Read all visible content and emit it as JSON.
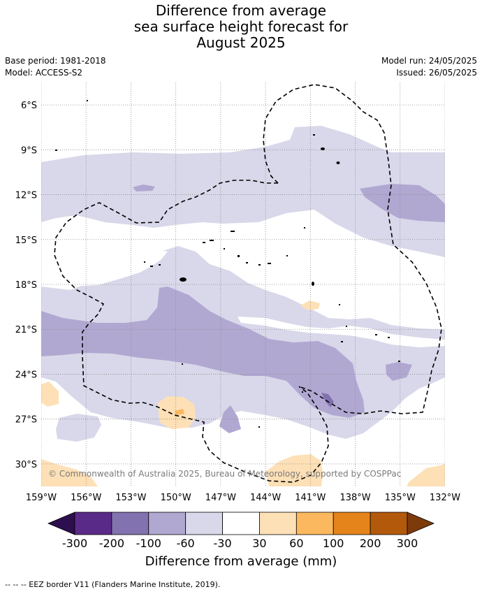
{
  "title": [
    "Difference from average",
    "sea surface height forecast for",
    "August 2025"
  ],
  "meta_left": {
    "base_period": "Base period: 1981-2018",
    "model": "Model: ACCESS-S2"
  },
  "meta_right": {
    "model_run": "Model run: 24/05/2025",
    "issued": "Issued: 26/05/2025"
  },
  "copyright": "© Commonwealth of Australia 2025, Bureau of Meteorology, supported by COSPPac",
  "map": {
    "lon_ticks": [
      -159,
      -156,
      -153,
      -150,
      -147,
      -144,
      -141,
      -138,
      -135,
      -132
    ],
    "lon_labels": [
      "159°W",
      "156°W",
      "153°W",
      "150°W",
      "147°W",
      "144°W",
      "141°W",
      "138°W",
      "135°W",
      "132°W"
    ],
    "lat_ticks": [
      -6,
      -9,
      -12,
      -15,
      -18,
      -21,
      -24,
      -27,
      -30
    ],
    "lat_labels": [
      "6°S",
      "9°S",
      "12°S",
      "15°S",
      "18°S",
      "21°S",
      "24°S",
      "27°S",
      "30°S"
    ],
    "lon_range": [
      -159,
      -132
    ],
    "lat_range": [
      -31.5,
      -4.5
    ],
    "gridlines": true
  },
  "colorbar": {
    "tick_labels": [
      "-300",
      "-200",
      "-100",
      "-60",
      "-30",
      "30",
      "60",
      "100",
      "200",
      "300"
    ],
    "colors": [
      "#2d0f4f",
      "#5a2a88",
      "#8272b0",
      "#b1a8d2",
      "#d8d8ea",
      "#ffffff",
      "#fde0b6",
      "#fbb85e",
      "#e4841a",
      "#b3590c",
      "#7d3a0b"
    ],
    "label": "Difference from average (mm)"
  },
  "footer": "-- -- -- EEZ border V11 (Flanders Marine Institute, 2019)."
}
